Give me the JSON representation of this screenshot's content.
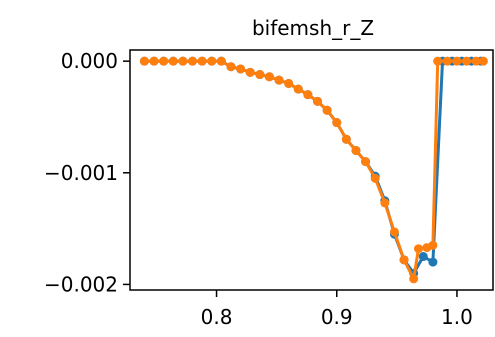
{
  "chart_data": {
    "type": "line",
    "title": "bifemsh_r_Z",
    "xlabel": "",
    "ylabel": "",
    "xlim": [
      0.728,
      1.03
    ],
    "ylim": [
      -0.00205,
      0.0001
    ],
    "xticks": [
      0.8,
      0.9,
      1.0
    ],
    "xtick_labels": [
      "0.8",
      "0.9",
      "1.0"
    ],
    "yticks": [
      0.0,
      -0.001,
      -0.002
    ],
    "ytick_labels": [
      "0.000",
      "−0.001",
      "−0.002"
    ],
    "grid": false,
    "series": [
      {
        "color": "#1f77b4",
        "x": [
          0.74,
          0.748,
          0.756,
          0.764,
          0.772,
          0.78,
          0.788,
          0.796,
          0.804,
          0.812,
          0.82,
          0.828,
          0.836,
          0.844,
          0.852,
          0.86,
          0.868,
          0.876,
          0.884,
          0.892,
          0.9,
          0.908,
          0.916,
          0.924,
          0.932,
          0.94,
          0.948,
          0.956,
          0.964,
          0.972,
          0.98,
          0.988,
          0.996,
          1.004,
          1.012,
          1.02
        ],
        "y": [
          0.0,
          0.0,
          0.0,
          0.0,
          0.0,
          0.0,
          0.0,
          0.0,
          0.0,
          -5e-05,
          -7e-05,
          -0.0001,
          -0.00012,
          -0.00014,
          -0.00017,
          -0.0002,
          -0.00025,
          -0.0003,
          -0.00036,
          -0.00044,
          -0.00055,
          -0.0007,
          -0.0008,
          -0.0009,
          -0.00103,
          -0.00125,
          -0.00155,
          -0.00178,
          -0.0019,
          -0.00175,
          -0.0018,
          0.0,
          0.0,
          0.0,
          0.0,
          0.0
        ]
      },
      {
        "color": "#ff7f0e",
        "x": [
          0.74,
          0.748,
          0.756,
          0.764,
          0.772,
          0.78,
          0.788,
          0.796,
          0.804,
          0.812,
          0.82,
          0.828,
          0.836,
          0.844,
          0.852,
          0.86,
          0.868,
          0.876,
          0.884,
          0.892,
          0.9,
          0.908,
          0.916,
          0.924,
          0.932,
          0.94,
          0.948,
          0.956,
          0.964,
          0.968,
          0.975,
          0.98,
          0.984,
          0.992,
          1.0,
          1.008,
          1.016,
          1.022
        ],
        "y": [
          0.0,
          0.0,
          0.0,
          0.0,
          0.0,
          0.0,
          0.0,
          0.0,
          0.0,
          -5e-05,
          -7e-05,
          -0.0001,
          -0.00012,
          -0.00014,
          -0.00017,
          -0.0002,
          -0.00025,
          -0.0003,
          -0.00036,
          -0.00044,
          -0.00055,
          -0.0007,
          -0.0008,
          -0.0009,
          -0.00105,
          -0.00127,
          -0.00153,
          -0.00178,
          -0.00195,
          -0.00168,
          -0.00167,
          -0.00165,
          0.0,
          0.0,
          0.0,
          0.0,
          0.0,
          0.0
        ]
      }
    ]
  }
}
